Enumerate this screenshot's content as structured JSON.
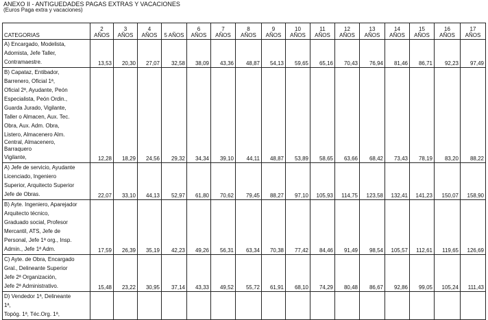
{
  "title": "ANEXO II - ANTIGUEDADES PAGAS EXTRAS Y VACACIONES",
  "subtitle": "(Euros Paga extra y vacaciones)",
  "header": {
    "categories": "CATEGORIAS",
    "years": [
      {
        "n": "2",
        "label": "AÑOS"
      },
      {
        "n": "3",
        "label": "AÑOS"
      },
      {
        "n": "4",
        "label": "AÑOS"
      },
      {
        "n": "",
        "label": "5 AÑOS"
      },
      {
        "n": "6",
        "label": "AÑOS"
      },
      {
        "n": "7",
        "label": "AÑOS"
      },
      {
        "n": "8",
        "label": "AÑOS"
      },
      {
        "n": "9",
        "label": "AÑOS"
      },
      {
        "n": "10",
        "label": "AÑOS"
      },
      {
        "n": "11",
        "label": "AÑOS"
      },
      {
        "n": "12",
        "label": "AÑOS"
      },
      {
        "n": "13",
        "label": "AÑOS"
      },
      {
        "n": "14",
        "label": "AÑOS"
      },
      {
        "n": "15",
        "label": "AÑOS"
      },
      {
        "n": "16",
        "label": "AÑOS"
      },
      {
        "n": "17",
        "label": "AÑOS"
      }
    ]
  },
  "rows": [
    {
      "lines": [
        "A) Encargado, Modelista,",
        "Adomista, Jefe Taller,",
        "Contramaestre."
      ],
      "values": [
        "13,53",
        "20,30",
        "27,07",
        "32,58",
        "38,09",
        "43,36",
        "48,87",
        "54,13",
        "59,65",
        "65,16",
        "70,43",
        "76,94",
        "81,46",
        "86,71",
        "92,23",
        "97,49"
      ]
    },
    {
      "lines": [
        "B) Capataz, Entibador,",
        "Barrenero, Oficial 1ª,",
        "Oficial 2ª, Ayudante, Peón",
        "Especialista, Peón Ordin.,",
        "Guarda Jurado, Vigilante,",
        "Taller o Almacen, Aux. Tec.",
        "Obra, Aux. Adm. Obra,",
        "Listero, Almacenero Alm.",
        "Central, Almacenero,",
        "Barraquero",
        "Vigilante,"
      ],
      "values": [
        "12,28",
        "18,29",
        "24,56",
        "29,32",
        "34,34",
        "39,10",
        "44,11",
        "48,87",
        "53,89",
        "58,65",
        "63,66",
        "68,42",
        "73,43",
        "78,19",
        "83,20",
        "88,22"
      ]
    },
    {
      "lines": [
        "A) Jefe de servicio, Ayudante",
        "Licenciado, Ingeniero",
        "Superior, Arquitecto Superior",
        "Jefe de Obras."
      ],
      "values": [
        "22,07",
        "33,10",
        "44,13",
        "52,97",
        "61,80",
        "70,62",
        "79,45",
        "88,27",
        "97,10",
        "105,93",
        "114,75",
        "123,58",
        "132,41",
        "141,23",
        "150,07",
        "158,90"
      ]
    },
    {
      "lines": [
        "B) Ayte. Ingeniero, Aparejador",
        "Arquitecto técnico,",
        "Graduado social, Profesor",
        "Mercantil, ATS, Jefe de",
        "Personal, Jefe 1ª org., Insp.",
        "Admin., Jefe 1ª Adm."
      ],
      "values": [
        "17,59",
        "26,39",
        "35,19",
        "42,23",
        "49,26",
        "56,31",
        "63,34",
        "70,38",
        "77,42",
        "84,46",
        "91,49",
        "98,54",
        "105,57",
        "112,61",
        "119,65",
        "126,69"
      ]
    },
    {
      "lines": [
        "C) Ayte. de Obra, Encargado",
        "Gral., Delineante Superior",
        "Jefe 2ª Organización,",
        "Jefe 2ª Administrativo."
      ],
      "values": [
        "15,48",
        "23,22",
        "30,95",
        "37,14",
        "43,33",
        "49,52",
        "55,72",
        "61,91",
        "68,10",
        "74,29",
        "80,48",
        "86,67",
        "92,86",
        "99,05",
        "105,24",
        "111,43"
      ]
    },
    {
      "lines": [
        "D) Vendedor 1ª, Delineante",
        "1ª,",
        "Topóg. 1ª, Téc.Org. 1ª,"
      ],
      "values": [
        "",
        "",
        "",
        "",
        "",
        "",
        "",
        "",
        "",
        "",
        "",
        "",
        "",
        "",
        "",
        ""
      ]
    }
  ]
}
